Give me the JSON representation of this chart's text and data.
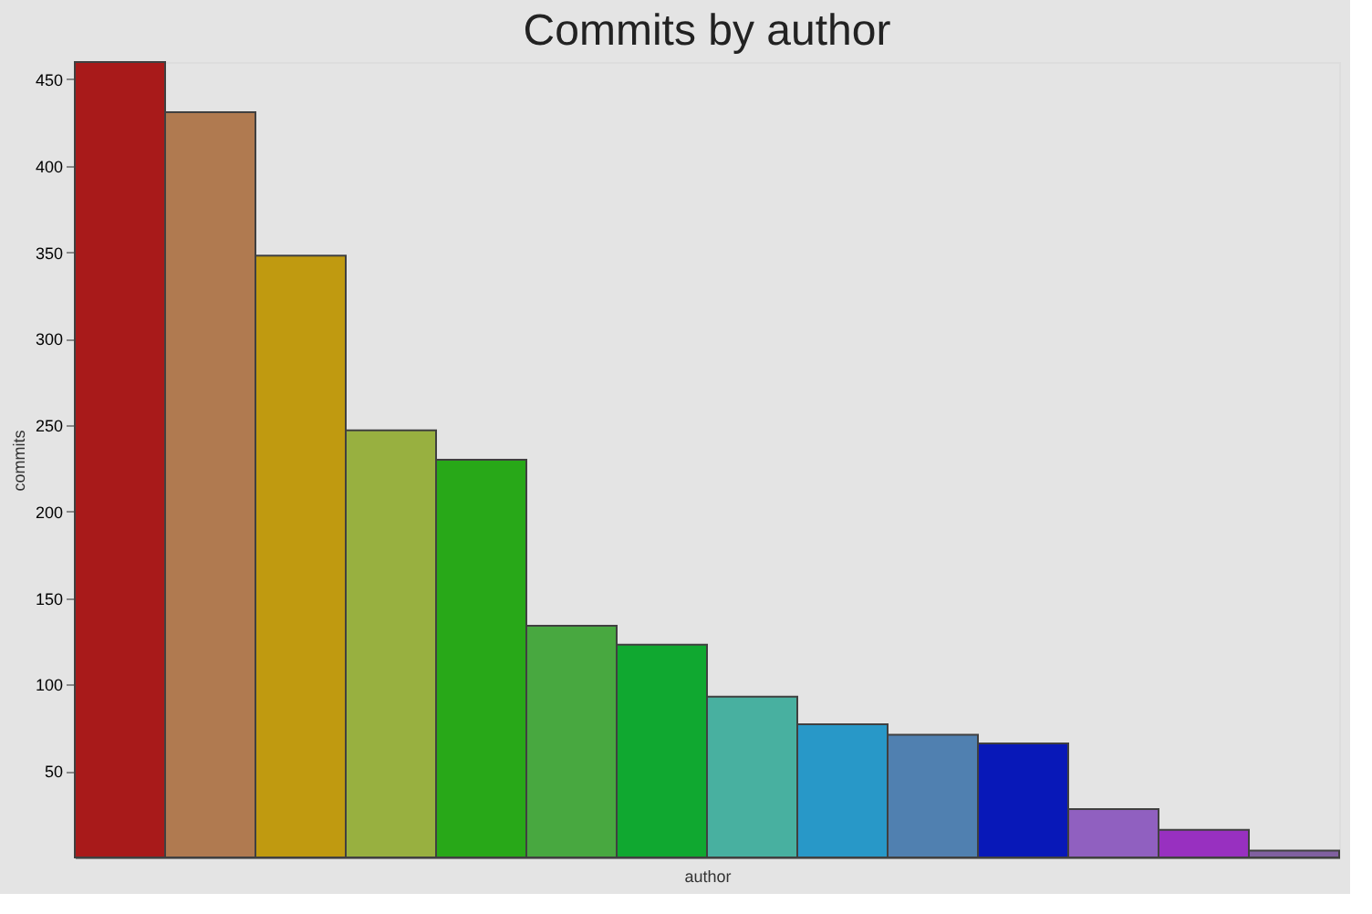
{
  "chart_data": {
    "type": "bar",
    "title": "Commits by author",
    "xlabel": "author",
    "ylabel": "commits",
    "categories": [
      null,
      null,
      null,
      null,
      null,
      null,
      null,
      null,
      null,
      null,
      null,
      null,
      null,
      null
    ],
    "values": [
      460,
      431,
      348,
      247,
      230,
      134,
      123,
      93,
      77,
      71,
      66,
      28,
      16,
      4
    ],
    "colors": [
      "#a81a1a",
      "#b07a50",
      "#c09a10",
      "#98b040",
      "#28a818",
      "#48a840",
      "#10a830",
      "#48b0a0",
      "#2898c8",
      "#5080b0",
      "#0818b8",
      "#9060c0",
      "#9830c0",
      "#8060a0"
    ],
    "ylim": [
      0,
      460
    ],
    "yticks": [
      50,
      100,
      150,
      200,
      250,
      300,
      350,
      400,
      450
    ],
    "grid": false
  }
}
